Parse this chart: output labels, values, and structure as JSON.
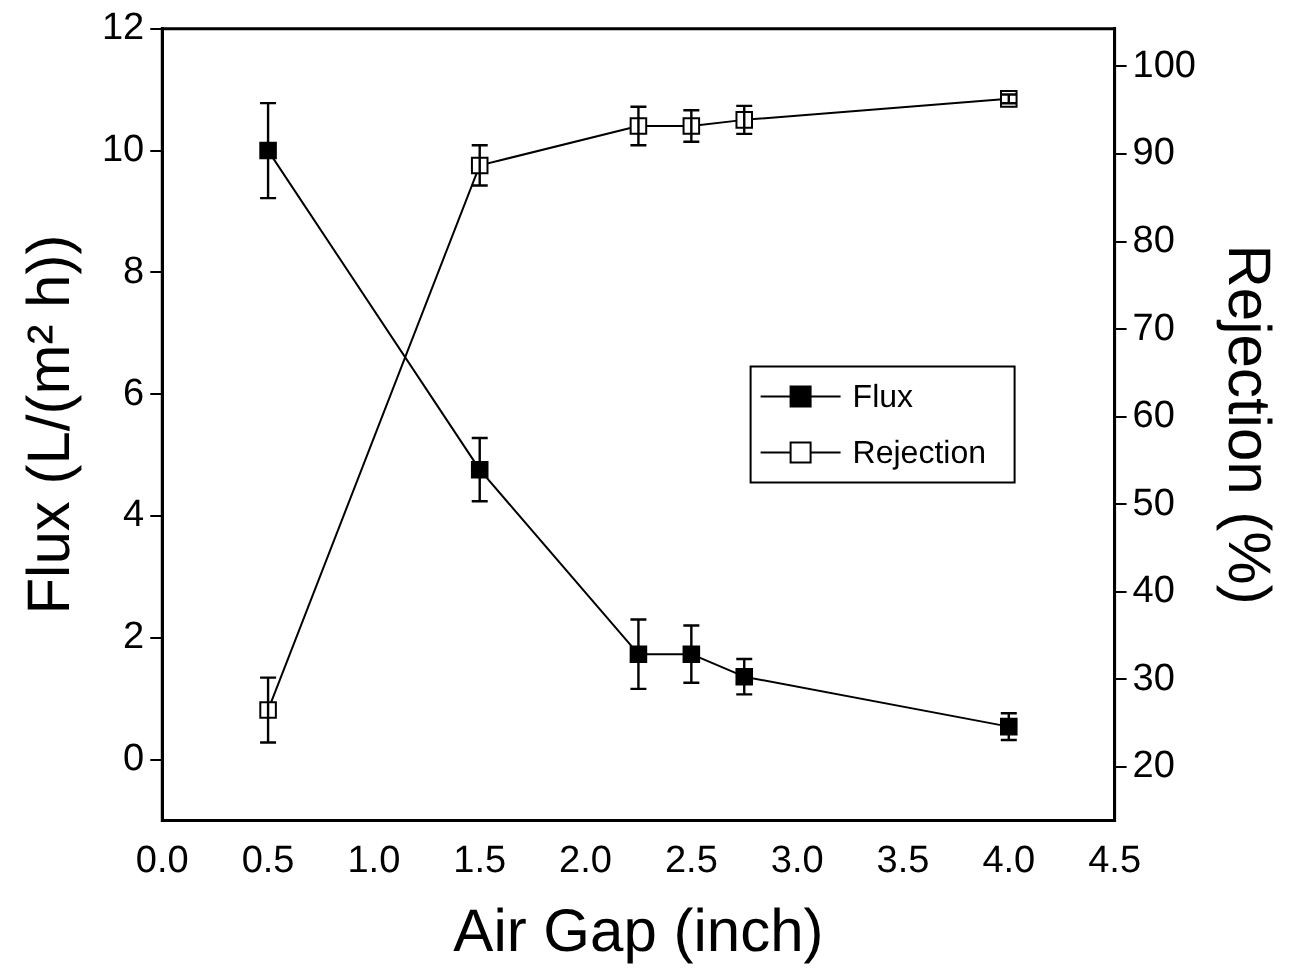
{
  "chart_data": {
    "type": "line",
    "xlabel": "Air Gap (inch)",
    "ylabel": "Flux (L/(m² h))",
    "y2label": "Rejection (%)",
    "x": [
      0.5,
      1.5,
      2.25,
      2.5,
      2.75,
      4.0
    ],
    "xlim": [
      0,
      4.5
    ],
    "xticks": [
      {
        "value": 0,
        "label": "0.0"
      },
      0.5,
      {
        "value": 1,
        "label": "1.0"
      },
      1.5,
      {
        "value": 2,
        "label": "2.0"
      },
      2.5,
      {
        "value": 3,
        "label": "3.0"
      },
      3.5,
      {
        "value": 4,
        "label": "4.0"
      },
      4.5
    ],
    "ylim": [
      -1,
      12
    ],
    "yticks": [
      0,
      2,
      4,
      6,
      8,
      10,
      12
    ],
    "y2lim": [
      13.9,
      104.3
    ],
    "y2ticks": [
      20,
      30,
      40,
      50,
      60,
      70,
      80,
      90,
      100
    ],
    "marker": "square",
    "line_style": "solid",
    "grid": false,
    "legend": "right",
    "series": [
      {
        "name": "Flux",
        "color": "#000000",
        "values": [
          10.0,
          4.76,
          1.73,
          1.73,
          1.36,
          0.54
        ],
        "errors": [
          0.78,
          0.52,
          0.57,
          0.47,
          0.29,
          0.22
        ]
      },
      {
        "name": "Rejection",
        "color": "#000000",
        "axis": "y2",
        "values": [
          26.5,
          88.7,
          93.2,
          93.2,
          93.9,
          96.3
        ],
        "errors": [
          3.7,
          2.3,
          2.2,
          1.8,
          1.6,
          0.5
        ]
      }
    ]
  }
}
